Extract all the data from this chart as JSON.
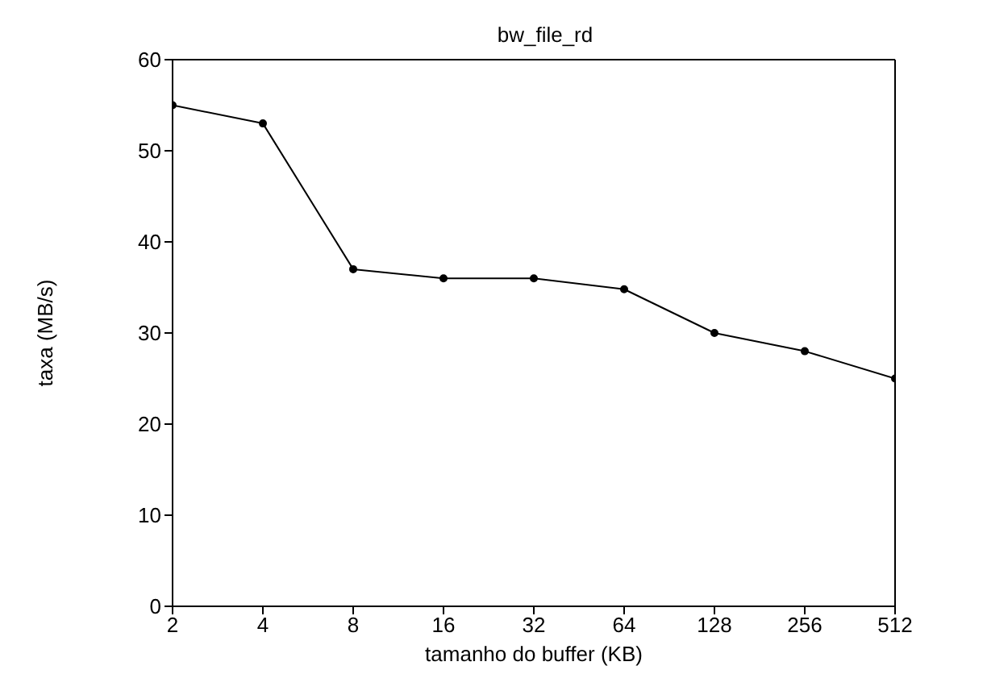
{
  "chart_data": {
    "type": "line",
    "title": "bw_file_rd",
    "xlabel": "tamanho do buffer (KB)",
    "ylabel": "taxa (MB/s)",
    "categories": [
      "2",
      "4",
      "8",
      "16",
      "32",
      "64",
      "128",
      "256",
      "512"
    ],
    "series": [
      {
        "color": "#000000",
        "values": [
          55,
          53,
          37,
          36,
          36,
          34.8,
          30,
          28,
          25
        ]
      }
    ],
    "ylim": [
      0,
      60
    ],
    "yticks": [
      0,
      10,
      20,
      30,
      40,
      50,
      60
    ],
    "grid": false,
    "legend": false,
    "marker": "circle",
    "line_style": "solid"
  }
}
